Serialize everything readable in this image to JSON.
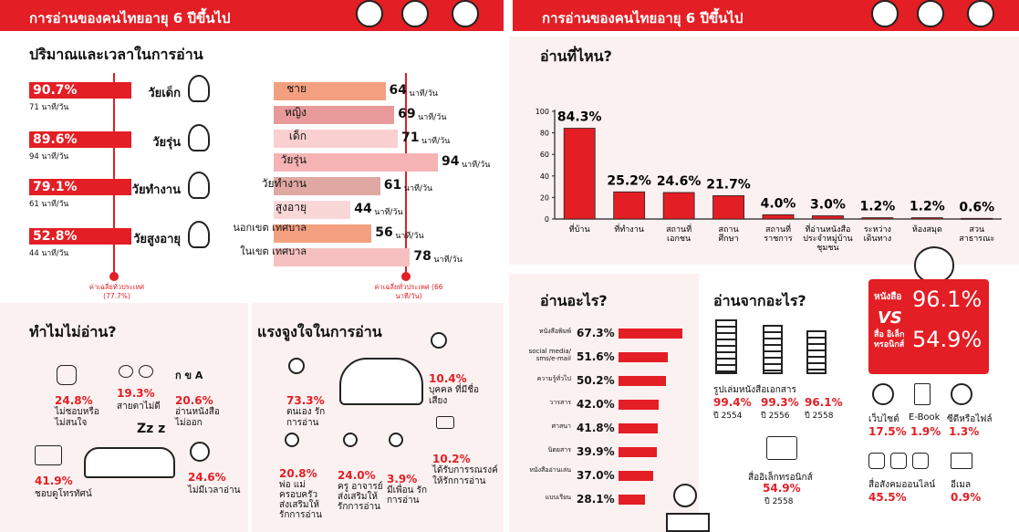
{
  "headers": {
    "left": "การอ่านของคนไทยอายุ 6 ปีขึ้นไป",
    "right": "การอ่านของคนไทยอายุ 6 ปีขึ้นไป"
  },
  "amount": {
    "title": "ปริมาณและเวลาในการอ่าน",
    "groups": [
      {
        "pct": "90.7%",
        "label": "วัยเด็ก",
        "sub": "71 นาที/วัน"
      },
      {
        "pct": "89.6%",
        "label": "วัยรุ่น",
        "sub": "94 นาที/วัน"
      },
      {
        "pct": "79.1%",
        "label": "วัยทำงาน",
        "sub": "61 นาที/วัน"
      },
      {
        "pct": "52.8%",
        "label": "วัยสูงอายุ",
        "sub": "44 นาที/วัน"
      }
    ],
    "avg_left": "ค่าเฉลี่ยทั่วประเทศ (77.7%)",
    "avg_right": "ค่าเฉลี่ยทั่วประเทศ (66 นาที/วัน)",
    "unit": "นาที/วัน",
    "time_rows": [
      {
        "label": "ชาย",
        "value": 64,
        "color": "#f4a080"
      },
      {
        "label": "หญิง",
        "value": 69,
        "color": "#e89a9a"
      },
      {
        "label": "เด็ก",
        "value": 71,
        "color": "#f9cfd0"
      },
      {
        "label": "วัยรุ่น",
        "value": 94,
        "color": "#f5b3b4"
      },
      {
        "label": "วัยทำงาน",
        "value": 61,
        "color": "#e0a8a2"
      },
      {
        "label": "สูงอายุ",
        "value": 44,
        "color": "#fad7d7"
      },
      {
        "label": "นอกเขต เทศบาล",
        "value": 56,
        "color": "#f4a080"
      },
      {
        "label": "ในเขต เทศบาล",
        "value": 78,
        "color": "#f7c0c0"
      }
    ]
  },
  "why_not": {
    "title": "ทำไมไม่อ่าน?",
    "items": [
      {
        "pct": "24.8%",
        "text": "ไม่ชอบหรือ ไม่สนใจ"
      },
      {
        "pct": "19.3%",
        "text": "สายตาไม่ดี"
      },
      {
        "pct": "20.6%",
        "text": "อ่านหนังสือ ไม่ออก"
      },
      {
        "pct": "41.9%",
        "text": "ชอบดูโทรทัศน์"
      },
      {
        "pct": "24.6%",
        "text": "ไม่มีเวลาอ่าน"
      }
    ],
    "zzz": "Zz z",
    "abc": "ก ข A"
  },
  "motivation": {
    "title": "แรงจูงใจในการอ่าน",
    "items": [
      {
        "pct": "73.3%",
        "text": "ตนเอง รักการอ่าน"
      },
      {
        "pct": "10.4%",
        "text": "บุคคล ที่มีชื่อเสียง"
      },
      {
        "pct": "10.2%",
        "text": "ได้รับการรณรงค์ ให้รักการอ่าน"
      },
      {
        "pct": "20.8%",
        "text": "พ่อ แม่ ครอบครัว ส่งเสริมให้ รักการอ่าน"
      },
      {
        "pct": "24.0%",
        "text": "ครู อาจารย์ ส่งเสริมให้ รักการอ่าน"
      },
      {
        "pct": "3.9%",
        "text": "มีเพื่อน รักการอ่าน"
      }
    ]
  },
  "where": {
    "title": "อ่านที่ไหน?"
  },
  "what": {
    "title": "อ่านอะไร?",
    "rows": [
      {
        "label": "หนังสือพิมพ์",
        "value": 67.3,
        "pct": "67.3%"
      },
      {
        "label": "social media/ sms/e-mail",
        "value": 51.6,
        "pct": "51.6%"
      },
      {
        "label": "ความรู้ทั่วไป",
        "value": 50.2,
        "pct": "50.2%"
      },
      {
        "label": "วารสาร",
        "value": 42.0,
        "pct": "42.0%"
      },
      {
        "label": "ศาสนา",
        "value": 41.8,
        "pct": "41.8%"
      },
      {
        "label": "นิตยสาร",
        "value": 39.9,
        "pct": "39.9%"
      },
      {
        "label": "หนังสืออ่านเล่น",
        "value": 37.0,
        "pct": "37.0%"
      },
      {
        "label": "แบบเรียน",
        "value": 28.1,
        "pct": "28.1%"
      }
    ]
  },
  "from": {
    "title": "อ่านจากอะไร?",
    "print_label": "รูปเล่มหนังสือเอกสาร",
    "print": [
      {
        "pct": "99.4%",
        "year": "ปี 2554"
      },
      {
        "pct": "99.3%",
        "year": "ปี 2556"
      },
      {
        "pct": "96.1%",
        "year": "ปี 2558"
      }
    ],
    "ebook_label": "สื่ออิเล็กทรอนิกส์",
    "ebook_pct": "54.9%",
    "ebook_year": "ปี 2558"
  },
  "vs": {
    "book_label": "หนังสือ",
    "book_pct": "96.1%",
    "vs": "VS",
    "elec_label": "สื่อ อิเล็ก ทรอนิกส์",
    "elec_pct": "54.9%"
  },
  "elec": [
    {
      "label": "เว็บไซต์",
      "pct": "17.5%"
    },
    {
      "label": "E-Book",
      "pct": "1.9%"
    },
    {
      "label": "ซีดีหรือไฟล์",
      "pct": "1.3%"
    },
    {
      "label": "สื่อสังคมออนไลน์",
      "pct": "45.5%"
    },
    {
      "label": "อีเมล",
      "pct": "0.9%"
    }
  ],
  "chart_data": {
    "type": "bar",
    "title": "อ่านที่ไหน?",
    "categories": [
      "ที่บ้าน",
      "ที่ทำงาน",
      "สถานที่ เอกชน",
      "สถาน ศึกษา",
      "สถานที่ ราชการ",
      "ที่อ่านหนังสือ ประจำหมู่บ้าน ชุมชน",
      "ระหว่าง เดินทาง",
      "ห้องสมุด",
      "สวน สาธารณะ"
    ],
    "values": [
      84.3,
      25.2,
      24.6,
      21.7,
      4.0,
      3.0,
      1.2,
      1.2,
      0.6
    ],
    "value_labels": [
      "84.3%",
      "25.2%",
      "24.6%",
      "21.7%",
      "4.0%",
      "3.0%",
      "1.2%",
      "1.2%",
      "0.6%"
    ],
    "ylim": [
      0,
      100
    ],
    "yticks": [
      "0",
      "20",
      "40",
      "60",
      "80",
      "100"
    ],
    "color": "#e31e24"
  }
}
